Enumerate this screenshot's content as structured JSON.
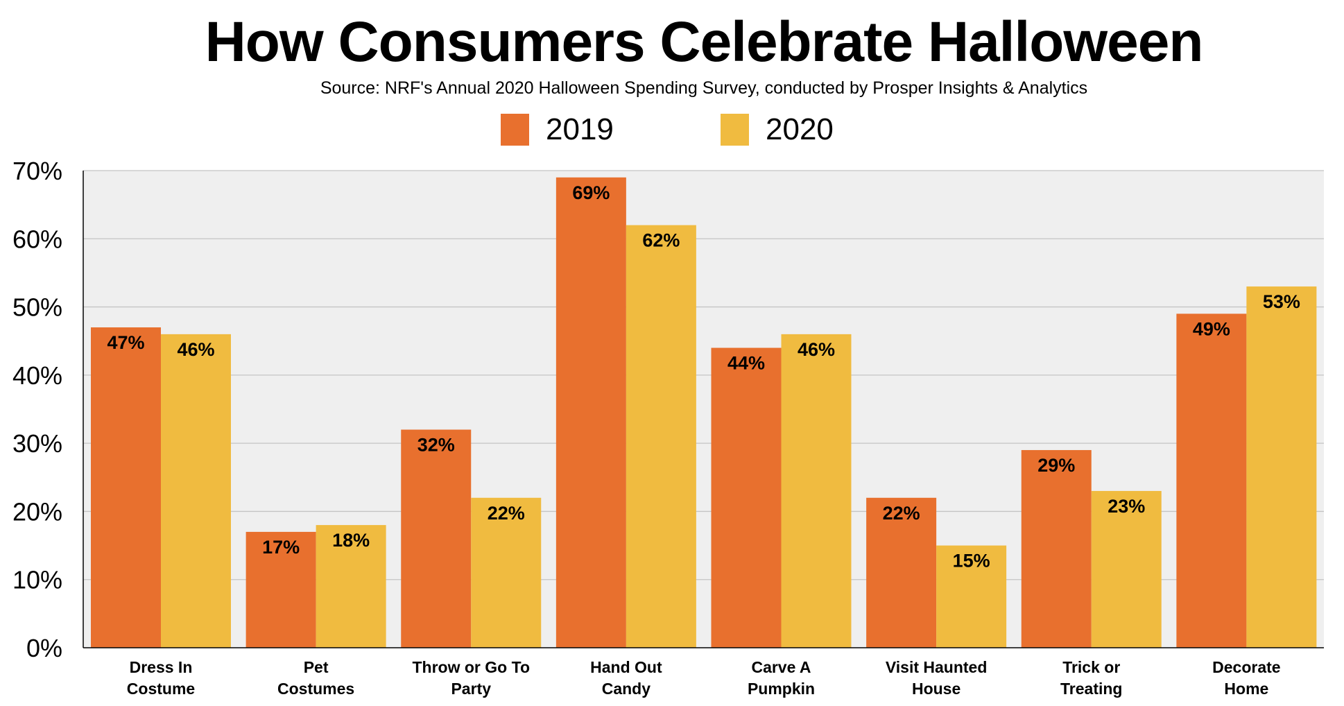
{
  "chart_data": {
    "type": "bar",
    "title": "How Consumers Celebrate Halloween",
    "subtitle": "Source: NRF's Annual 2020 Halloween Spending Survey, conducted by Prosper Insights & Analytics",
    "categories": [
      "Dress In\nCostume",
      "Pet\nCostumes",
      "Throw or Go To\nParty",
      "Hand Out\nCandy",
      "Carve A\nPumpkin",
      "Visit Haunted\nHouse",
      "Trick or\nTreating",
      "Decorate\nHome"
    ],
    "series": [
      {
        "name": "2019",
        "color": "#E8702E",
        "values": [
          47,
          17,
          32,
          69,
          44,
          22,
          29,
          49
        ]
      },
      {
        "name": "2020",
        "color": "#F0BB40",
        "values": [
          46,
          18,
          22,
          62,
          46,
          15,
          23,
          53
        ]
      }
    ],
    "ylim": [
      0,
      70
    ],
    "yticks": [
      "0%",
      "10%",
      "20%",
      "30%",
      "40%",
      "50%",
      "60%",
      "70%"
    ],
    "value_suffix": "%",
    "grid": true,
    "plot_background": "#EFEFEF",
    "legend": "top-center"
  }
}
